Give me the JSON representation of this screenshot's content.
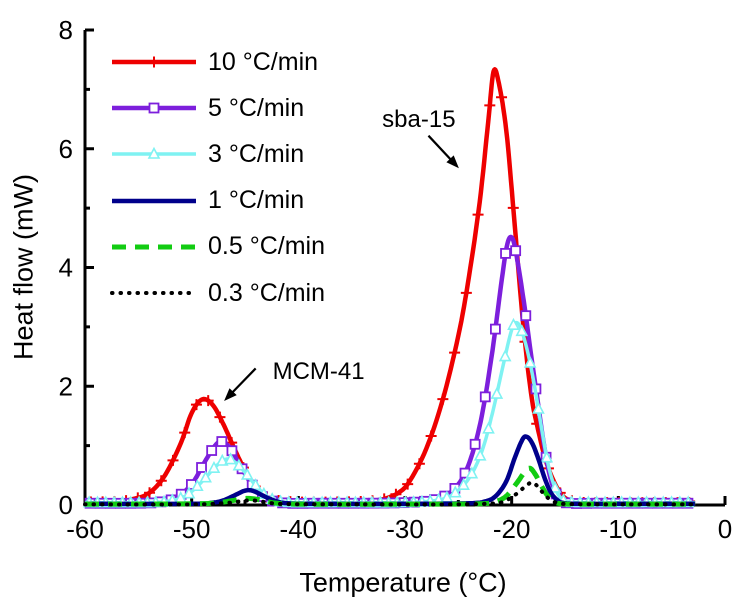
{
  "figure": {
    "background": "#ffffff"
  },
  "chart_data": {
    "type": "line",
    "title": "",
    "xlabel": "Temperature (°C)",
    "ylabel": "Heat flow (mW)",
    "xlim": [
      -60,
      0
    ],
    "ylim": [
      0,
      8
    ],
    "x_major_ticks": [
      -60,
      -50,
      -40,
      -30,
      -20,
      -10,
      0
    ],
    "x_minor_ticks": [
      -55,
      -45,
      -35,
      -25,
      -15,
      -5
    ],
    "y_major_ticks": [
      0,
      2,
      4,
      6,
      8
    ],
    "y_minor_ticks": [
      1,
      3,
      5,
      7
    ],
    "grid": false,
    "legend_position": "top-left",
    "annotations": [
      {
        "text": "sba-15",
        "x": -28.7,
        "y": 6.48,
        "arrow_from": [
          -27.8,
          6.22
        ],
        "arrow_to": [
          -25.2,
          5.72
        ]
      },
      {
        "text": "MCM-41",
        "x": -38.1,
        "y": 2.24,
        "arrow_from": [
          -44.0,
          2.3
        ],
        "arrow_to": [
          -46.7,
          1.8
        ]
      }
    ],
    "series": [
      {
        "name": "10 °C/min",
        "color": "#EE0000",
        "line_style": "solid",
        "line_width": 4.5,
        "marker": "plus",
        "marker_spacing": 1.1,
        "peak_labels": [
          "MCM-41",
          "sba-15"
        ],
        "points": [
          [
            -60,
            0.05
          ],
          [
            -57,
            0.06
          ],
          [
            -55.5,
            0.1
          ],
          [
            -54,
            0.2
          ],
          [
            -52.5,
            0.5
          ],
          [
            -51,
            1.05
          ],
          [
            -50,
            1.55
          ],
          [
            -49,
            1.78
          ],
          [
            -48,
            1.68
          ],
          [
            -47,
            1.35
          ],
          [
            -46,
            0.95
          ],
          [
            -45,
            0.58
          ],
          [
            -44,
            0.3
          ],
          [
            -43,
            0.14
          ],
          [
            -42,
            0.08
          ],
          [
            -40,
            0.05
          ],
          [
            -37,
            0.05
          ],
          [
            -34,
            0.06
          ],
          [
            -32,
            0.1
          ],
          [
            -30.5,
            0.22
          ],
          [
            -29.5,
            0.42
          ],
          [
            -28,
            0.95
          ],
          [
            -26.5,
            1.75
          ],
          [
            -25,
            2.85
          ],
          [
            -24,
            3.85
          ],
          [
            -23,
            5.1
          ],
          [
            -22.2,
            6.45
          ],
          [
            -21.7,
            7.3
          ],
          [
            -21.2,
            7.1
          ],
          [
            -20.5,
            6.3
          ],
          [
            -19.8,
            4.9
          ],
          [
            -19,
            3.2
          ],
          [
            -18.2,
            1.9
          ],
          [
            -17.5,
            1.25
          ],
          [
            -16.8,
            0.75
          ],
          [
            -16,
            0.38
          ],
          [
            -15.2,
            0.15
          ],
          [
            -14.3,
            0.07
          ],
          [
            -13,
            0.04
          ],
          [
            -11,
            0.04
          ],
          [
            -8,
            0.04
          ],
          [
            -5,
            0.04
          ],
          [
            -2.8,
            0.04
          ]
        ]
      },
      {
        "name": "5 °C/min",
        "color": "#7D1FDC",
        "line_style": "solid",
        "line_width": 4.5,
        "marker": "square",
        "marker_spacing": 0.95,
        "points": [
          [
            -60,
            0.03
          ],
          [
            -55,
            0.03
          ],
          [
            -53,
            0.05
          ],
          [
            -51.5,
            0.12
          ],
          [
            -50,
            0.35
          ],
          [
            -48.8,
            0.72
          ],
          [
            -47.8,
            1.0
          ],
          [
            -47.2,
            1.07
          ],
          [
            -46.4,
            0.96
          ],
          [
            -45.5,
            0.68
          ],
          [
            -44.5,
            0.38
          ],
          [
            -43.5,
            0.16
          ],
          [
            -42.5,
            0.07
          ],
          [
            -41,
            0.03
          ],
          [
            -38,
            0.03
          ],
          [
            -34,
            0.03
          ],
          [
            -30,
            0.04
          ],
          [
            -27.5,
            0.08
          ],
          [
            -26,
            0.18
          ],
          [
            -24.8,
            0.4
          ],
          [
            -23.8,
            0.8
          ],
          [
            -22.8,
            1.5
          ],
          [
            -21.8,
            2.6
          ],
          [
            -21,
            3.7
          ],
          [
            -20.4,
            4.4
          ],
          [
            -19.9,
            4.48
          ],
          [
            -19.4,
            4.05
          ],
          [
            -18.8,
            3.35
          ],
          [
            -18.2,
            2.55
          ],
          [
            -17.6,
            1.8
          ],
          [
            -17,
            1.05
          ],
          [
            -16.5,
            0.55
          ],
          [
            -16,
            0.25
          ],
          [
            -15.4,
            0.09
          ],
          [
            -14.6,
            0.03
          ],
          [
            -12,
            0.03
          ],
          [
            -8,
            0.03
          ],
          [
            -2.8,
            0.03
          ]
        ]
      },
      {
        "name": "3 °C/min",
        "color": "#7FF2F2",
        "line_style": "solid",
        "line_width": 3.5,
        "marker": "triangle",
        "marker_spacing": 0.78,
        "points": [
          [
            -60,
            0.04
          ],
          [
            -54,
            0.04
          ],
          [
            -52,
            0.07
          ],
          [
            -50.5,
            0.16
          ],
          [
            -49,
            0.4
          ],
          [
            -47.8,
            0.64
          ],
          [
            -46.8,
            0.77
          ],
          [
            -46,
            0.73
          ],
          [
            -45,
            0.55
          ],
          [
            -44,
            0.33
          ],
          [
            -43,
            0.15
          ],
          [
            -42,
            0.07
          ],
          [
            -40.5,
            0.04
          ],
          [
            -36,
            0.04
          ],
          [
            -30,
            0.04
          ],
          [
            -27,
            0.08
          ],
          [
            -25.5,
            0.18
          ],
          [
            -24,
            0.45
          ],
          [
            -22.8,
            0.9
          ],
          [
            -21.8,
            1.55
          ],
          [
            -20.8,
            2.35
          ],
          [
            -20,
            2.95
          ],
          [
            -19.5,
            3.07
          ],
          [
            -19,
            2.9
          ],
          [
            -18.4,
            2.5
          ],
          [
            -17.8,
            1.95
          ],
          [
            -17.2,
            1.3
          ],
          [
            -16.6,
            0.7
          ],
          [
            -16,
            0.32
          ],
          [
            -15.4,
            0.12
          ],
          [
            -14.6,
            0.05
          ],
          [
            -12,
            0.04
          ],
          [
            -8,
            0.04
          ],
          [
            -2.8,
            0.04
          ]
        ]
      },
      {
        "name": "1 °C/min",
        "color": "#00008B",
        "line_style": "solid",
        "line_width": 4.5,
        "marker": "none",
        "marker_spacing": 0,
        "points": [
          [
            -60,
            0.02
          ],
          [
            -50,
            0.02
          ],
          [
            -48,
            0.04
          ],
          [
            -47,
            0.08
          ],
          [
            -46,
            0.16
          ],
          [
            -45.2,
            0.23
          ],
          [
            -44.6,
            0.25
          ],
          [
            -44,
            0.22
          ],
          [
            -43,
            0.13
          ],
          [
            -42,
            0.06
          ],
          [
            -41,
            0.03
          ],
          [
            -38,
            0.02
          ],
          [
            -30,
            0.02
          ],
          [
            -24,
            0.03
          ],
          [
            -22.5,
            0.06
          ],
          [
            -21.5,
            0.15
          ],
          [
            -20.5,
            0.4
          ],
          [
            -19.7,
            0.8
          ],
          [
            -19,
            1.1
          ],
          [
            -18.6,
            1.15
          ],
          [
            -18.1,
            1.05
          ],
          [
            -17.5,
            0.78
          ],
          [
            -16.9,
            0.45
          ],
          [
            -16.3,
            0.2
          ],
          [
            -15.7,
            0.08
          ],
          [
            -15,
            0.03
          ],
          [
            -13,
            0.02
          ],
          [
            -8,
            0.02
          ],
          [
            -2.8,
            0.02
          ]
        ]
      },
      {
        "name": "0.5 °C/min",
        "color": "#12CC12",
        "line_style": "dashed",
        "line_width": 5,
        "marker": "none",
        "marker_spacing": 0,
        "points": [
          [
            -60,
            0.015
          ],
          [
            -50,
            0.02
          ],
          [
            -47.5,
            0.04
          ],
          [
            -46,
            0.08
          ],
          [
            -45,
            0.11
          ],
          [
            -44,
            0.1
          ],
          [
            -43,
            0.06
          ],
          [
            -42,
            0.03
          ],
          [
            -40,
            0.015
          ],
          [
            -30,
            0.015
          ],
          [
            -23,
            0.02
          ],
          [
            -21.5,
            0.06
          ],
          [
            -20.5,
            0.15
          ],
          [
            -19.6,
            0.35
          ],
          [
            -18.8,
            0.55
          ],
          [
            -18.3,
            0.62
          ],
          [
            -17.8,
            0.52
          ],
          [
            -17.2,
            0.32
          ],
          [
            -16.6,
            0.15
          ],
          [
            -16,
            0.06
          ],
          [
            -15.3,
            0.02
          ],
          [
            -13,
            0.015
          ],
          [
            -8,
            0.015
          ],
          [
            -2.8,
            0.015
          ]
        ]
      },
      {
        "name": "0.3 °C/min",
        "color": "#000000",
        "line_style": "dotted",
        "line_width": 4,
        "marker": "none",
        "marker_spacing": 0,
        "points": [
          [
            -60,
            0.01
          ],
          [
            -50,
            0.01
          ],
          [
            -47,
            0.03
          ],
          [
            -45.5,
            0.06
          ],
          [
            -44.5,
            0.08
          ],
          [
            -43.5,
            0.06
          ],
          [
            -42.5,
            0.03
          ],
          [
            -41,
            0.015
          ],
          [
            -35,
            0.01
          ],
          [
            -25,
            0.01
          ],
          [
            -21.5,
            0.03
          ],
          [
            -20.5,
            0.08
          ],
          [
            -19.6,
            0.18
          ],
          [
            -18.8,
            0.3
          ],
          [
            -18.1,
            0.38
          ],
          [
            -17.5,
            0.3
          ],
          [
            -16.9,
            0.17
          ],
          [
            -16.3,
            0.08
          ],
          [
            -15.6,
            0.03
          ],
          [
            -14.5,
            0.015
          ],
          [
            -10,
            0.01
          ],
          [
            -2.8,
            0.01
          ]
        ]
      }
    ]
  }
}
